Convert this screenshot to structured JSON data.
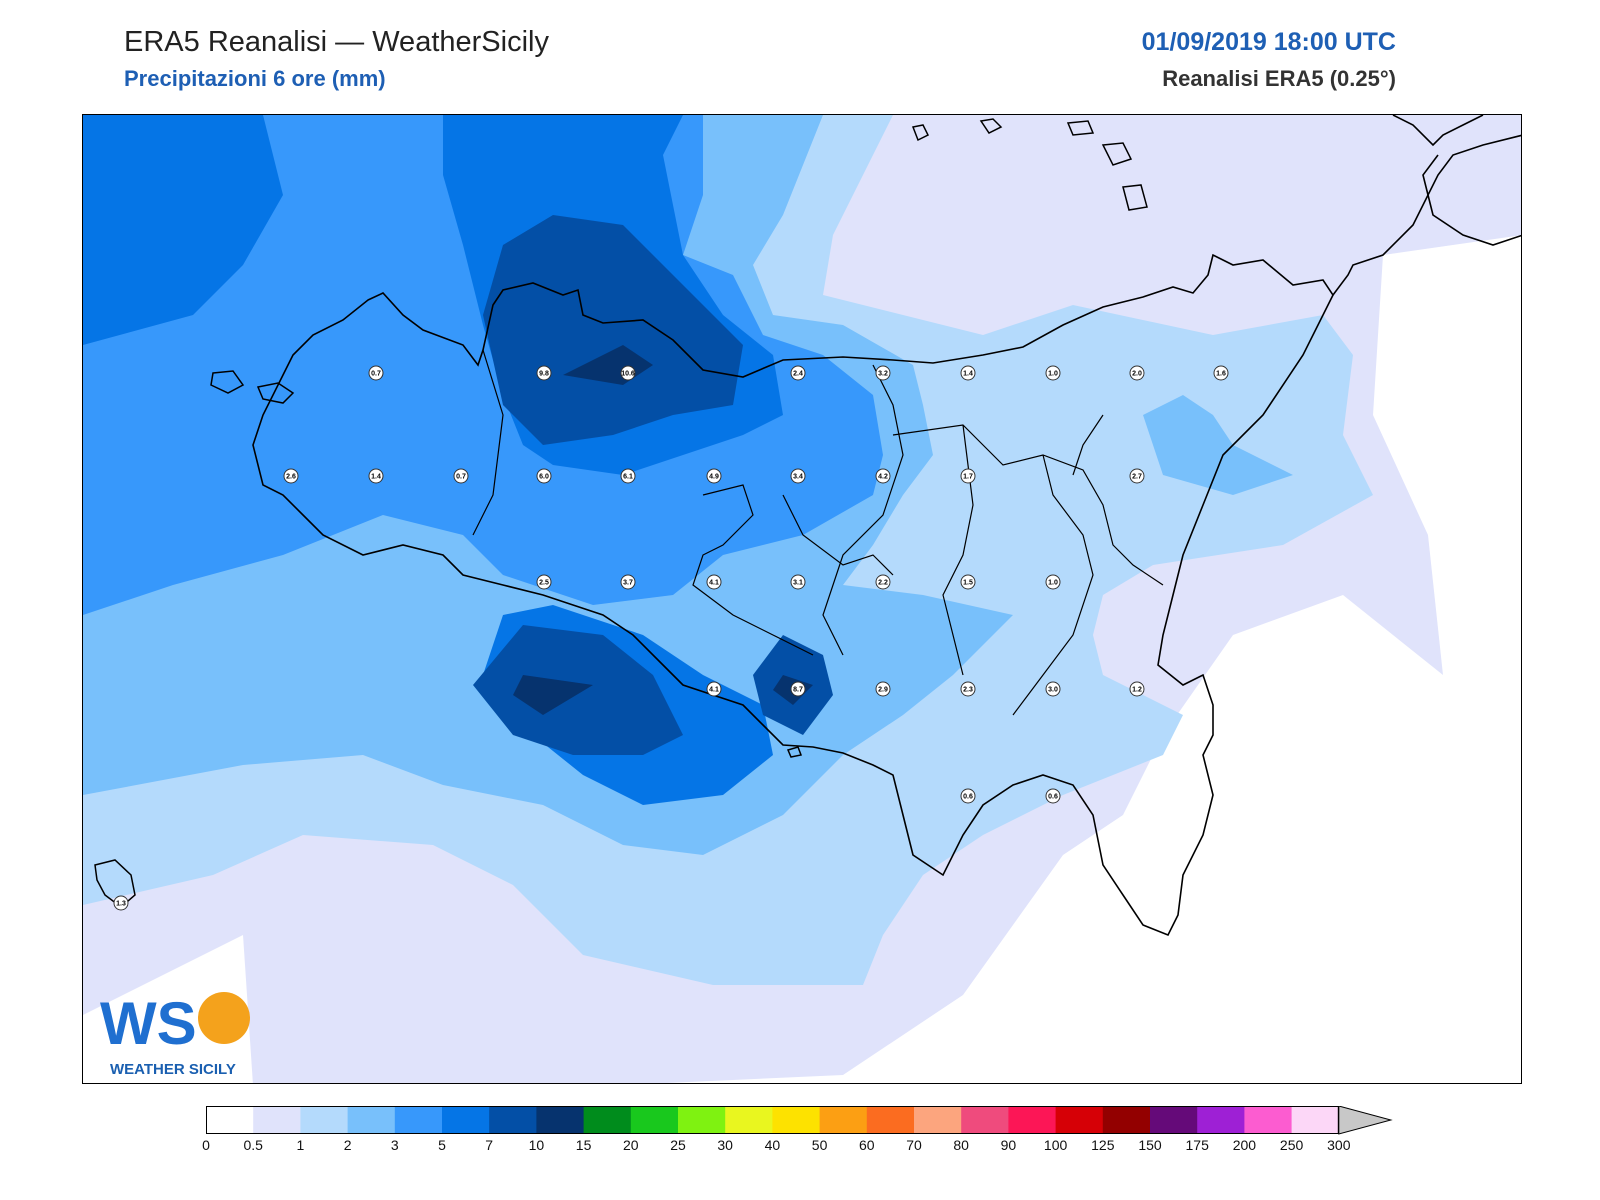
{
  "header": {
    "title": "ERA5 Reanalisi — WeatherSicily",
    "subtitle": "Precipitazioni 6 ore (mm)",
    "datetime": "01/09/2019 18:00 UTC",
    "source": "Reanalisi ERA5 (0.25°)"
  },
  "logo": {
    "text": "WEATHER SICILY",
    "initials": "WS"
  },
  "colorbar": {
    "ticks": [
      "0",
      "0.5",
      "1",
      "2",
      "3",
      "5",
      "7",
      "10",
      "15",
      "20",
      "25",
      "30",
      "40",
      "50",
      "60",
      "70",
      "80",
      "90",
      "100",
      "125",
      "150",
      "175",
      "200",
      "250",
      "300"
    ],
    "colors": [
      "#ffffff",
      "#e0e3fb",
      "#b4dafc",
      "#78c0fb",
      "#3798fb",
      "#0575e6",
      "#034fa6",
      "#06336e",
      "#008c1c",
      "#19c81d",
      "#7ff211",
      "#e9f61f",
      "#fde200",
      "#fc9f13",
      "#fb6c20",
      "#fca57e",
      "#ef4b7d",
      "#fc1656",
      "#d60006",
      "#930000",
      "#650a79",
      "#9e20d5",
      "#fc5cd0",
      "#fcd7f7"
    ],
    "extend_color": "#c8c8c8",
    "unit": "mm"
  },
  "stations": [
    {
      "label": "0.7",
      "col": 3,
      "row": 0
    },
    {
      "label": "9.8",
      "col": 5,
      "row": 0
    },
    {
      "label": "10.6",
      "col": 6,
      "row": 0
    },
    {
      "label": "2.4",
      "col": 8,
      "row": 0
    },
    {
      "label": "3.2",
      "col": 9,
      "row": 0
    },
    {
      "label": "1.4",
      "col": 10,
      "row": 0
    },
    {
      "label": "1.0",
      "col": 11,
      "row": 0
    },
    {
      "label": "2.0",
      "col": 12,
      "row": 0
    },
    {
      "label": "1.6",
      "col": 13,
      "row": 0
    },
    {
      "label": "2.6",
      "col": 2,
      "row": 1
    },
    {
      "label": "1.4",
      "col": 3,
      "row": 1
    },
    {
      "label": "0.7",
      "col": 4,
      "row": 1
    },
    {
      "label": "6.0",
      "col": 5,
      "row": 1
    },
    {
      "label": "6.1",
      "col": 6,
      "row": 1
    },
    {
      "label": "4.9",
      "col": 7,
      "row": 1
    },
    {
      "label": "3.4",
      "col": 8,
      "row": 1
    },
    {
      "label": "4.2",
      "col": 9,
      "row": 1
    },
    {
      "label": "1.7",
      "col": 10,
      "row": 1
    },
    {
      "label": "2.7",
      "col": 12,
      "row": 1
    },
    {
      "label": "2.5",
      "col": 5,
      "row": 2
    },
    {
      "label": "3.7",
      "col": 6,
      "row": 2
    },
    {
      "label": "4.1",
      "col": 7,
      "row": 2
    },
    {
      "label": "3.1",
      "col": 8,
      "row": 2
    },
    {
      "label": "2.2",
      "col": 9,
      "row": 2
    },
    {
      "label": "1.5",
      "col": 10,
      "row": 2
    },
    {
      "label": "1.0",
      "col": 11,
      "row": 2
    },
    {
      "label": "4.1",
      "col": 7,
      "row": 3
    },
    {
      "label": "8.7",
      "col": 8,
      "row": 3
    },
    {
      "label": "2.9",
      "col": 9,
      "row": 3
    },
    {
      "label": "2.3",
      "col": 10,
      "row": 3
    },
    {
      "label": "3.0",
      "col": 11,
      "row": 3
    },
    {
      "label": "1.2",
      "col": 12,
      "row": 3
    },
    {
      "label": "0.6",
      "col": 10,
      "row": 4
    },
    {
      "label": "0.6",
      "col": 11,
      "row": 4
    },
    {
      "label": "1.3",
      "col": 0,
      "row": 5
    }
  ]
}
